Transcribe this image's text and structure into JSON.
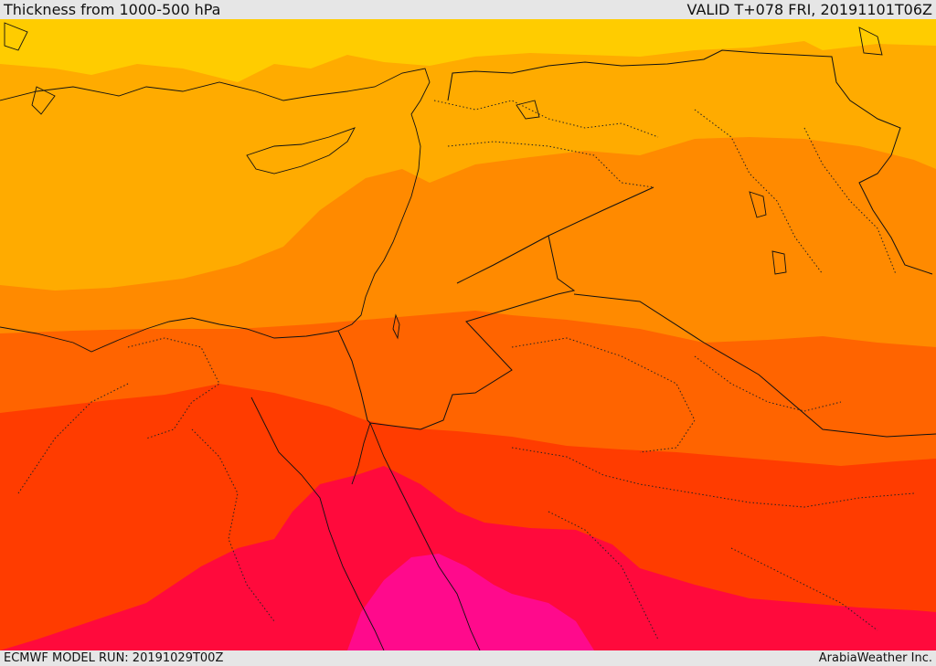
{
  "header": {
    "title": "Thickness from 1000-500 hPa",
    "valid": "VALID T+078 FRI, 20191101T06Z"
  },
  "footer": {
    "model_run": "ECMWF MODEL RUN: 20191029T00Z",
    "credit": "ArabiaWeather Inc."
  },
  "colors": {
    "band1": "#ffcc00",
    "band2": "#ffab00",
    "band3": "#ff8a00",
    "band4": "#ff6400",
    "band5": "#ff3c00",
    "band6": "#ff0a3c",
    "band7": "#ff0a8c",
    "boundary": "#111111"
  }
}
